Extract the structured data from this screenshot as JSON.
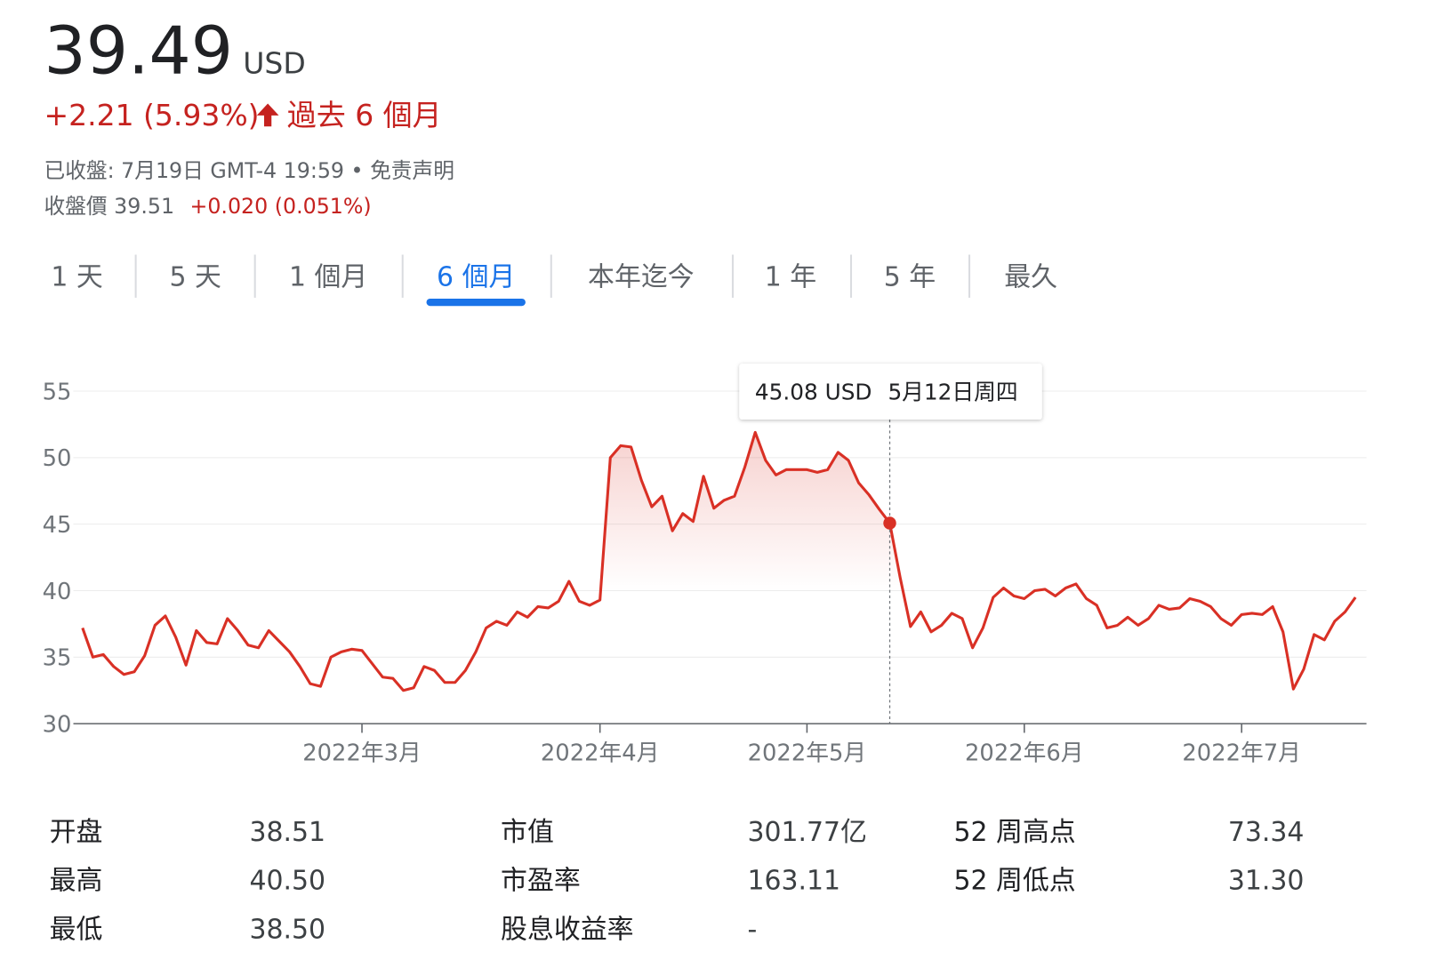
{
  "quote": {
    "price": "39.49",
    "currency": "USD",
    "change": "+2.21 (5.93%)",
    "period": "過去 6 個月",
    "status": "已收盤: 7月19日 GMT-4 19:59 • 免责声明",
    "close_label": "收盤價 39.51",
    "close_change": "+0.020 (0.051%)"
  },
  "tabs": [
    "1 天",
    "5 天",
    "1 個月",
    "6 個月",
    "本年迄今",
    "1 年",
    "5 年",
    "最久"
  ],
  "active_tab": 3,
  "chart_data": {
    "type": "line",
    "categories": [
      null,
      null,
      null,
      null,
      null,
      null,
      null,
      null,
      null,
      null,
      null,
      null,
      null,
      null,
      null,
      null,
      null,
      null,
      null,
      null,
      null,
      null,
      null,
      null,
      null,
      null,
      null,
      "2022年3月",
      null,
      null,
      null,
      null,
      null,
      null,
      null,
      null,
      null,
      null,
      null,
      null,
      null,
      null,
      null,
      null,
      null,
      null,
      null,
      null,
      null,
      null,
      "2022年4月",
      null,
      null,
      null,
      null,
      null,
      null,
      null,
      null,
      null,
      null,
      null,
      null,
      null,
      null,
      null,
      null,
      null,
      null,
      null,
      "2022年5月",
      null,
      null,
      null,
      null,
      null,
      null,
      null,
      null,
      null,
      null,
      null,
      null,
      null,
      null,
      null,
      null,
      null,
      null,
      null,
      null,
      "2022年6月",
      null,
      null,
      null,
      null,
      null,
      null,
      null,
      null,
      null,
      null,
      null,
      null,
      null,
      null,
      null,
      null,
      null,
      null,
      null,
      null,
      "2022年7月",
      null,
      null,
      null,
      null,
      null,
      null,
      null,
      null,
      null,
      null,
      null
    ],
    "series": [
      {
        "color": "#d93025",
        "values": [
          37.2,
          35.0,
          35.2,
          34.3,
          33.7,
          33.9,
          35.1,
          37.4,
          38.1,
          36.5,
          34.4,
          37.0,
          36.1,
          36.0,
          37.9,
          37.0,
          35.9,
          35.7,
          37.0,
          36.2,
          35.4,
          34.3,
          33.0,
          32.8,
          35.0,
          35.4,
          35.6,
          35.5,
          34.5,
          33.5,
          33.4,
          32.5,
          32.7,
          34.3,
          34.0,
          33.1,
          33.1,
          34.0,
          35.4,
          37.2,
          37.7,
          37.4,
          38.4,
          38.0,
          38.8,
          38.7,
          39.2,
          40.7,
          39.2,
          38.9,
          39.3,
          50.0,
          50.9,
          50.8,
          48.3,
          46.3,
          47.1,
          44.5,
          45.8,
          45.2,
          48.6,
          46.2,
          46.8,
          47.1,
          49.3,
          51.9,
          49.8,
          48.7,
          49.1,
          49.1,
          49.1,
          48.9,
          49.1,
          50.4,
          49.8,
          48.1,
          47.2,
          46.1,
          45.08,
          41.0,
          37.3,
          38.4,
          36.9,
          37.4,
          38.3,
          37.9,
          35.7,
          37.2,
          39.5,
          40.2,
          39.6,
          39.4,
          40.0,
          40.1,
          39.6,
          40.2,
          40.5,
          39.4,
          38.9,
          37.2,
          37.4,
          38.0,
          37.4,
          37.9,
          38.9,
          38.6,
          38.7,
          39.4,
          39.2,
          38.8,
          37.9,
          37.4,
          38.2,
          38.3,
          38.2,
          38.8,
          36.9,
          32.6,
          34.1,
          36.7,
          36.3,
          37.7,
          38.4,
          39.5
        ]
      }
    ],
    "ylim": [
      30,
      55
    ],
    "yticks": [
      30,
      35,
      40,
      45,
      50,
      55
    ],
    "grid": true,
    "tooltip": {
      "value": 45.08,
      "label": "45.08 USD",
      "date": "5月12日周四"
    }
  },
  "stats": {
    "rows": [
      [
        "开盘",
        "38.51",
        "市值",
        "301.77亿",
        "52 周高点",
        "73.34"
      ],
      [
        "最高",
        "40.50",
        "市盈率",
        "163.11",
        "52 周低点",
        "31.30"
      ],
      [
        "最低",
        "38.50",
        "股息收益率",
        "-"
      ]
    ]
  }
}
